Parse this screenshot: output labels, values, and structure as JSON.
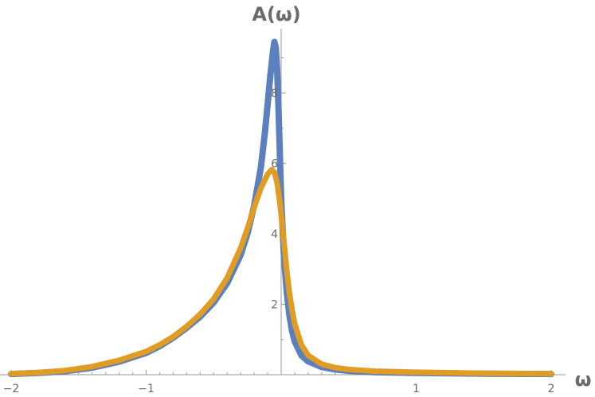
{
  "chart_data": {
    "type": "line",
    "xlabel": "ω",
    "ylabel": "A(ω)",
    "xlim": [
      -2,
      2
    ],
    "ylim": [
      0,
      9.6
    ],
    "x_ticks": [
      -2,
      -1,
      1,
      2
    ],
    "x_tick_labels": [
      "−2",
      "−1",
      "1",
      "2"
    ],
    "y_ticks": [
      2,
      4,
      6,
      8
    ],
    "y_tick_labels": [
      "2",
      "4",
      "6",
      "8"
    ],
    "grid": false,
    "colors": {
      "series_1": "#5B80BD",
      "series_2": "#E19C24",
      "axis": "#9a9a9a"
    },
    "series": [
      {
        "color": "#5B80BD",
        "points": [
          [
            -2.0,
            0.02
          ],
          [
            -1.8,
            0.05
          ],
          [
            -1.6,
            0.1
          ],
          [
            -1.4,
            0.2
          ],
          [
            -1.2,
            0.37
          ],
          [
            -1.0,
            0.62
          ],
          [
            -0.9,
            0.81
          ],
          [
            -0.8,
            1.05
          ],
          [
            -0.7,
            1.33
          ],
          [
            -0.6,
            1.65
          ],
          [
            -0.5,
            2.05
          ],
          [
            -0.4,
            2.6
          ],
          [
            -0.3,
            3.4
          ],
          [
            -0.25,
            4.0
          ],
          [
            -0.2,
            4.8
          ],
          [
            -0.15,
            5.9
          ],
          [
            -0.12,
            6.9
          ],
          [
            -0.1,
            7.7
          ],
          [
            -0.08,
            8.5
          ],
          [
            -0.06,
            9.2
          ],
          [
            -0.05,
            9.45
          ],
          [
            -0.04,
            9.3
          ],
          [
            -0.03,
            8.7
          ],
          [
            -0.02,
            7.6
          ],
          [
            -0.01,
            6.3
          ],
          [
            0.0,
            5.0
          ],
          [
            0.02,
            3.4
          ],
          [
            0.04,
            2.4
          ],
          [
            0.06,
            1.7
          ],
          [
            0.08,
            1.25
          ],
          [
            0.1,
            0.95
          ],
          [
            0.15,
            0.55
          ],
          [
            0.2,
            0.38
          ],
          [
            0.3,
            0.22
          ],
          [
            0.4,
            0.15
          ],
          [
            0.5,
            0.11
          ],
          [
            0.7,
            0.07
          ],
          [
            1.0,
            0.05
          ],
          [
            1.5,
            0.03
          ],
          [
            2.0,
            0.02
          ]
        ]
      },
      {
        "color": "#E19C24",
        "points": [
          [
            -2.0,
            0.03
          ],
          [
            -1.8,
            0.06
          ],
          [
            -1.6,
            0.12
          ],
          [
            -1.4,
            0.23
          ],
          [
            -1.2,
            0.41
          ],
          [
            -1.0,
            0.66
          ],
          [
            -0.9,
            0.85
          ],
          [
            -0.8,
            1.08
          ],
          [
            -0.7,
            1.37
          ],
          [
            -0.6,
            1.72
          ],
          [
            -0.5,
            2.15
          ],
          [
            -0.4,
            2.75
          ],
          [
            -0.3,
            3.6
          ],
          [
            -0.25,
            4.15
          ],
          [
            -0.2,
            4.75
          ],
          [
            -0.15,
            5.3
          ],
          [
            -0.1,
            5.7
          ],
          [
            -0.07,
            5.82
          ],
          [
            -0.05,
            5.75
          ],
          [
            -0.03,
            5.45
          ],
          [
            -0.01,
            4.9
          ],
          [
            0.0,
            4.55
          ],
          [
            0.02,
            3.8
          ],
          [
            0.04,
            3.0
          ],
          [
            0.06,
            2.35
          ],
          [
            0.08,
            1.85
          ],
          [
            0.1,
            1.45
          ],
          [
            0.15,
            0.85
          ],
          [
            0.2,
            0.55
          ],
          [
            0.3,
            0.3
          ],
          [
            0.4,
            0.2
          ],
          [
            0.5,
            0.15
          ],
          [
            0.7,
            0.1
          ],
          [
            1.0,
            0.07
          ],
          [
            1.5,
            0.04
          ],
          [
            2.0,
            0.03
          ]
        ]
      }
    ]
  }
}
